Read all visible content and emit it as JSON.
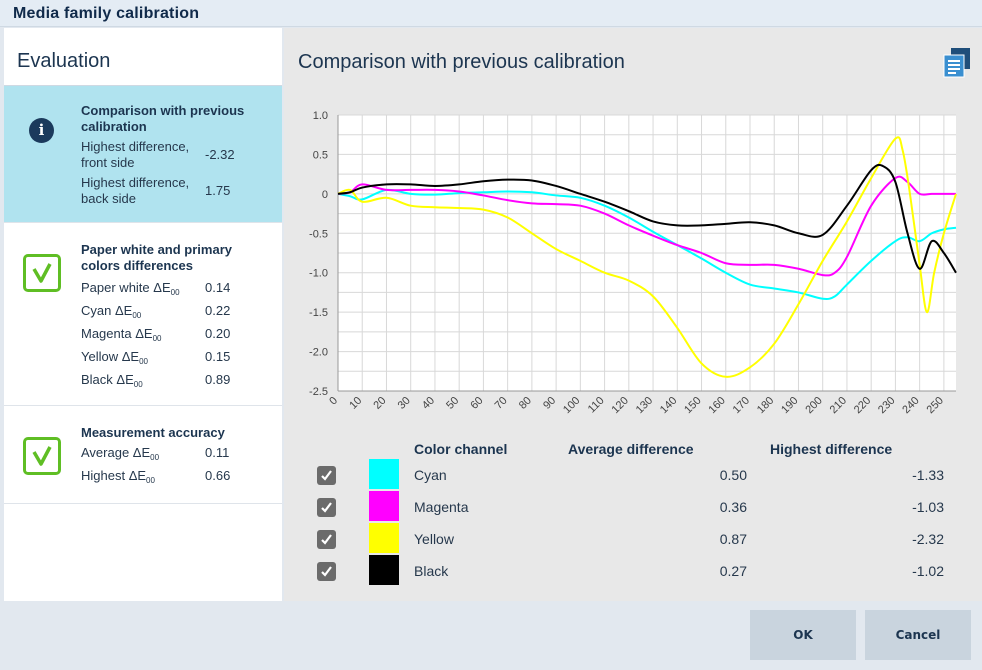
{
  "window": {
    "title": "Media family calibration"
  },
  "sidebar": {
    "heading": "Evaluation",
    "comparison": {
      "title": "Comparison with previous calibration",
      "rows": [
        {
          "label": "Highest difference, front side",
          "value": "-2.32"
        },
        {
          "label": "Highest difference, back side",
          "value": "1.75"
        }
      ]
    },
    "paper": {
      "title": "Paper white and primary colors differences",
      "rows": [
        {
          "label": "Paper white ΔE",
          "value": "0.14"
        },
        {
          "label": "Cyan ΔE",
          "value": "0.22"
        },
        {
          "label": "Magenta ΔE",
          "value": "0.20"
        },
        {
          "label": "Yellow ΔE",
          "value": "0.15"
        },
        {
          "label": "Black ΔE",
          "value": "0.89"
        }
      ],
      "subscript": "00"
    },
    "accuracy": {
      "title": "Measurement accuracy",
      "rows": [
        {
          "label": "Average ΔE",
          "value": "0.11"
        },
        {
          "label": "Highest ΔE",
          "value": "0.66"
        }
      ]
    }
  },
  "main": {
    "title": "Comparison with previous calibration",
    "report_icon": "report-icon",
    "table": {
      "headers": {
        "channel": "Color channel",
        "average": "Average difference",
        "highest": "Highest difference"
      },
      "rows": [
        {
          "name": "Cyan",
          "color": "#00ffff",
          "average": "0.50",
          "highest": "-1.33",
          "checked": true
        },
        {
          "name": "Magenta",
          "color": "#ff00ff",
          "average": "0.36",
          "highest": "-1.03",
          "checked": true
        },
        {
          "name": "Yellow",
          "color": "#ffff00",
          "average": "0.87",
          "highest": "-2.32",
          "checked": true
        },
        {
          "name": "Black",
          "color": "#000000",
          "average": "0.27",
          "highest": "-1.02",
          "checked": true
        }
      ]
    }
  },
  "buttons": {
    "ok": "OK",
    "cancel": "Cancel"
  },
  "chart_data": {
    "type": "line",
    "xlim": [
      0,
      255
    ],
    "ylim": [
      -2.5,
      1.0
    ],
    "x_ticks": [
      0,
      10,
      20,
      30,
      40,
      50,
      60,
      70,
      80,
      90,
      100,
      110,
      120,
      130,
      140,
      150,
      160,
      170,
      180,
      190,
      200,
      210,
      220,
      230,
      240,
      250
    ],
    "y_ticks": [
      "1.0",
      "0.5",
      "0",
      "-0.5",
      "-1.0",
      "-1.5",
      "-2.0",
      "-2.5"
    ],
    "grid": true,
    "series": [
      {
        "name": "Cyan",
        "color": "#00ffff",
        "x": [
          0,
          5,
          10,
          20,
          30,
          40,
          50,
          60,
          70,
          80,
          90,
          100,
          110,
          120,
          130,
          140,
          150,
          160,
          170,
          180,
          190,
          200,
          205,
          210,
          220,
          230,
          235,
          240,
          245,
          250,
          255
        ],
        "y": [
          0,
          -0.03,
          -0.07,
          0.05,
          0.0,
          -0.01,
          0.01,
          0.02,
          0.03,
          0.02,
          -0.02,
          -0.05,
          -0.15,
          -0.3,
          -0.48,
          -0.65,
          -0.82,
          -1.0,
          -1.15,
          -1.2,
          -1.25,
          -1.33,
          -1.3,
          -1.15,
          -0.85,
          -0.6,
          -0.55,
          -0.6,
          -0.5,
          -0.45,
          -0.43
        ]
      },
      {
        "name": "Magenta",
        "color": "#ff00ff",
        "x": [
          0,
          5,
          10,
          20,
          30,
          40,
          50,
          60,
          70,
          80,
          90,
          100,
          110,
          120,
          130,
          140,
          150,
          160,
          170,
          180,
          190,
          200,
          205,
          210,
          220,
          230,
          235,
          240,
          245,
          250,
          255
        ],
        "y": [
          0,
          0.02,
          0.12,
          0.05,
          0.05,
          0.05,
          0.03,
          -0.02,
          -0.08,
          -0.12,
          -0.13,
          -0.15,
          -0.25,
          -0.4,
          -0.53,
          -0.65,
          -0.75,
          -0.88,
          -0.9,
          -0.9,
          -0.95,
          -1.03,
          -1.0,
          -0.8,
          -0.15,
          0.2,
          0.15,
          0.0,
          0.0,
          0.0,
          0.0
        ]
      },
      {
        "name": "Yellow",
        "color": "#ffff00",
        "x": [
          0,
          5,
          10,
          20,
          30,
          40,
          50,
          60,
          70,
          80,
          90,
          100,
          110,
          120,
          130,
          140,
          150,
          160,
          170,
          180,
          190,
          200,
          210,
          220,
          230,
          233,
          236,
          240,
          243,
          246,
          250,
          255
        ],
        "y": [
          0,
          0.05,
          -0.1,
          -0.05,
          -0.15,
          -0.17,
          -0.18,
          -0.2,
          -0.3,
          -0.5,
          -0.7,
          -0.85,
          -1.0,
          -1.1,
          -1.3,
          -1.7,
          -2.15,
          -2.32,
          -2.2,
          -1.9,
          -1.4,
          -0.85,
          -0.35,
          0.2,
          0.7,
          0.55,
          0.0,
          -0.9,
          -1.5,
          -1.0,
          -0.5,
          0.0
        ]
      },
      {
        "name": "Black",
        "color": "#000000",
        "x": [
          0,
          5,
          10,
          20,
          30,
          40,
          50,
          60,
          70,
          80,
          90,
          100,
          110,
          120,
          130,
          140,
          150,
          160,
          170,
          180,
          190,
          200,
          210,
          220,
          225,
          230,
          235,
          240,
          245,
          250,
          255
        ],
        "y": [
          0,
          0.02,
          0.08,
          0.12,
          0.12,
          0.1,
          0.12,
          0.16,
          0.18,
          0.17,
          0.1,
          0.0,
          -0.1,
          -0.22,
          -0.35,
          -0.4,
          -0.4,
          -0.38,
          -0.36,
          -0.4,
          -0.5,
          -0.52,
          -0.15,
          0.3,
          0.35,
          0.15,
          -0.5,
          -0.95,
          -0.6,
          -0.75,
          -1.0
        ]
      }
    ]
  }
}
